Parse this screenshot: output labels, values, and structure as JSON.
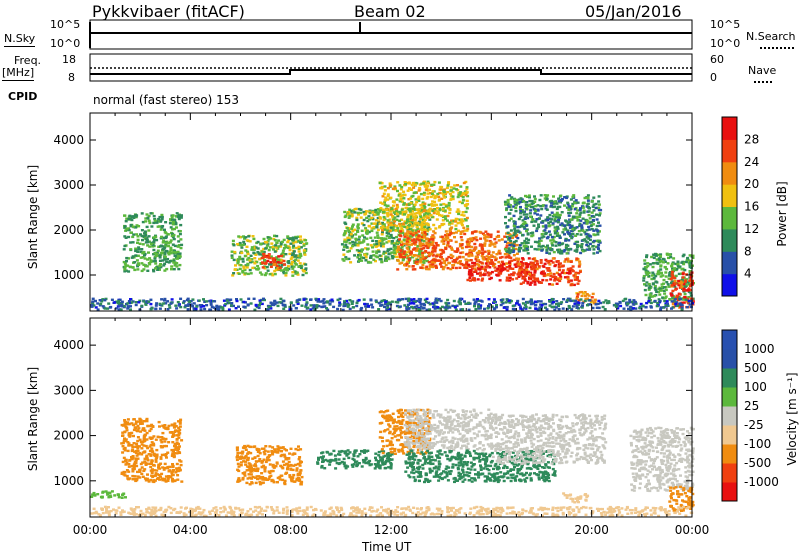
{
  "header": {
    "station": "Pykkvibaer (fitACF)",
    "beam": "Beam 02",
    "date": "05/Jan/2016"
  },
  "nsky": {
    "label_left": "N.Sky",
    "label_right": "N.Search",
    "ticks_left": [
      "10^5",
      "10^0"
    ],
    "ticks_right": [
      "10^5",
      "10^0"
    ]
  },
  "freq": {
    "label_top": "Freq.",
    "label_unit": "[MHz]",
    "ticks_left": [
      "18",
      "8"
    ],
    "ticks_right": [
      "60",
      "0"
    ],
    "label_right": "Nave",
    "cpid_label": "CPID",
    "cpid_value": "normal (fast stereo) 153"
  },
  "colors": {
    "power": [
      "#1010e8",
      "#2850a8",
      "#2e8a5a",
      "#5cb83c",
      "#f0c010",
      "#f08c10",
      "#f04010",
      "#e81010"
    ],
    "velocity": [
      "#e81010",
      "#f04010",
      "#f08c10",
      "#f0c890",
      "#c8c8c0",
      "#5cb83c",
      "#2e8a5a",
      "#2850a8",
      "#2850b0"
    ]
  },
  "chart_data": [
    {
      "type": "heatmap",
      "title": "",
      "xlabel": "",
      "ylabel": "Slant Range [km]",
      "xlim": [
        "00:00",
        "00:00"
      ],
      "ylim": [
        200,
        4600
      ],
      "yticks": [
        "1000",
        "2000",
        "3000",
        "4000"
      ],
      "colorbar_label": "Power [dB]",
      "colorbar_ticks": [
        "28",
        "24",
        "20",
        "16",
        "12",
        "8",
        "4"
      ],
      "regions": [
        {
          "t0": 1.3,
          "t1": 3.6,
          "r0": 1100,
          "r1": 2400,
          "value": 12
        },
        {
          "t0": 5.6,
          "t1": 8.6,
          "r0": 1000,
          "r1": 1900,
          "value": 14
        },
        {
          "t0": 6.8,
          "t1": 7.7,
          "r0": 1150,
          "r1": 1500,
          "value": 26
        },
        {
          "t0": 10.0,
          "t1": 13.5,
          "r0": 1300,
          "r1": 2500,
          "value": 14
        },
        {
          "t0": 11.5,
          "t1": 15.0,
          "r0": 2000,
          "r1": 3100,
          "value": 17
        },
        {
          "t0": 12.2,
          "t1": 17.0,
          "r0": 1150,
          "r1": 2000,
          "value": 24
        },
        {
          "t0": 15.0,
          "t1": 17.8,
          "r0": 900,
          "r1": 1300,
          "value": 28
        },
        {
          "t0": 16.5,
          "t1": 20.3,
          "r0": 1500,
          "r1": 2800,
          "value": 10
        },
        {
          "t0": 17.0,
          "t1": 19.5,
          "r0": 800,
          "r1": 1400,
          "value": 26
        },
        {
          "t0": 19.3,
          "t1": 20.1,
          "r0": 400,
          "r1": 650,
          "value": 22
        },
        {
          "t0": 22.0,
          "t1": 24.0,
          "r0": 450,
          "r1": 1500,
          "value": 12
        },
        {
          "t0": 23.1,
          "t1": 24.0,
          "r0": 300,
          "r1": 1100,
          "value": 27
        },
        {
          "t0": 0.0,
          "t1": 24.0,
          "r0": 250,
          "r1": 500,
          "value": 7
        }
      ]
    },
    {
      "type": "heatmap",
      "title": "",
      "xlabel": "Time UT",
      "ylabel": "Slant Range [km]",
      "xlim": [
        "00:00",
        "00:00"
      ],
      "xticks": [
        "00:00",
        "04:00",
        "08:00",
        "12:00",
        "16:00",
        "20:00",
        "00:00"
      ],
      "ylim": [
        200,
        4600
      ],
      "yticks": [
        "1000",
        "2000",
        "3000",
        "4000"
      ],
      "colorbar_label": "Velocity [m s⁻¹]",
      "colorbar_ticks": [
        "1000",
        "500",
        "100",
        "25",
        "-25",
        "-100",
        "-500",
        "-1000"
      ],
      "regions": [
        {
          "t0": 1.2,
          "t1": 3.6,
          "r0": 1000,
          "r1": 2400,
          "value": -300
        },
        {
          "t0": 0.0,
          "t1": 1.5,
          "r0": 650,
          "r1": 800,
          "value": 80
        },
        {
          "t0": 5.8,
          "t1": 8.4,
          "r0": 950,
          "r1": 1800,
          "value": -400
        },
        {
          "t0": 9.0,
          "t1": 12.0,
          "r0": 1300,
          "r1": 1700,
          "value": 150
        },
        {
          "t0": 11.5,
          "t1": 13.5,
          "r0": 1600,
          "r1": 2600,
          "value": -300
        },
        {
          "t0": 12.5,
          "t1": 16.0,
          "r0": 1700,
          "r1": 2600,
          "value": 0
        },
        {
          "t0": 12.5,
          "t1": 18.5,
          "r0": 1000,
          "r1": 1700,
          "value": 300
        },
        {
          "t0": 16.0,
          "t1": 20.5,
          "r0": 1400,
          "r1": 2500,
          "value": 0
        },
        {
          "t0": 18.8,
          "t1": 19.8,
          "r0": 550,
          "r1": 750,
          "value": -80
        },
        {
          "t0": 21.5,
          "t1": 24.0,
          "r0": 800,
          "r1": 2200,
          "value": 0
        },
        {
          "t0": 23.0,
          "t1": 24.0,
          "r0": 350,
          "r1": 900,
          "value": -150
        },
        {
          "t0": 0.0,
          "t1": 24.0,
          "r0": 250,
          "r1": 450,
          "value": -40
        }
      ]
    }
  ]
}
